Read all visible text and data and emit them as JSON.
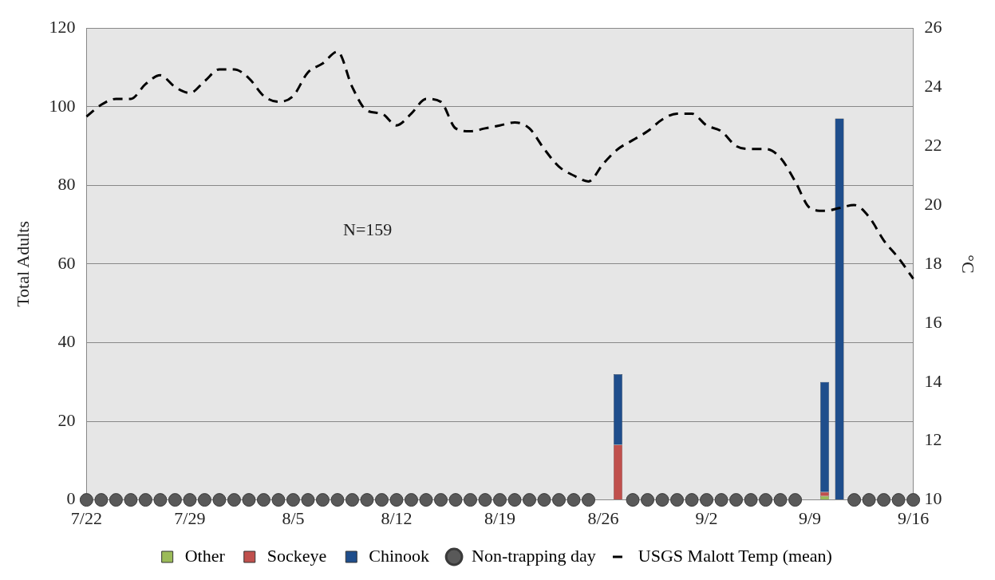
{
  "chart_data": {
    "type": "bar",
    "stacked": true,
    "categories": [
      "7/22",
      null,
      null,
      null,
      null,
      null,
      null,
      "7/29",
      null,
      null,
      null,
      null,
      null,
      null,
      "8/5",
      null,
      null,
      null,
      null,
      null,
      null,
      "8/12",
      null,
      null,
      null,
      null,
      null,
      null,
      "8/19",
      null,
      null,
      null,
      null,
      null,
      null,
      "8/26",
      null,
      null,
      null,
      null,
      null,
      null,
      "9/2",
      null,
      null,
      null,
      null,
      null,
      null,
      "9/9",
      null,
      null,
      null,
      null,
      null,
      null,
      "9/16"
    ],
    "ylabel": "Total Adults",
    "y2label": "°C",
    "ylim": [
      0,
      120
    ],
    "yticks": [
      0,
      20,
      40,
      60,
      80,
      100,
      120
    ],
    "y2lim": [
      10,
      26
    ],
    "y2ticks": [
      10,
      12,
      14,
      16,
      18,
      20,
      22,
      24,
      26
    ],
    "grid": "y",
    "legend": "bottom",
    "annotations": [
      "N=159"
    ],
    "series": [
      {
        "name": "Other",
        "color": "#9bbb59",
        "values": [
          null,
          null,
          null,
          null,
          null,
          null,
          null,
          null,
          null,
          null,
          null,
          null,
          null,
          null,
          null,
          null,
          null,
          null,
          null,
          null,
          null,
          null,
          null,
          null,
          null,
          null,
          null,
          null,
          null,
          null,
          null,
          null,
          null,
          null,
          null,
          0,
          0,
          null,
          null,
          null,
          null,
          null,
          null,
          null,
          null,
          null,
          null,
          null,
          null,
          0,
          1,
          0,
          null,
          null,
          null,
          null,
          null
        ]
      },
      {
        "name": "Sockeye",
        "color": "#c0504d",
        "values": [
          null,
          null,
          null,
          null,
          null,
          null,
          null,
          null,
          null,
          null,
          null,
          null,
          null,
          null,
          null,
          null,
          null,
          null,
          null,
          null,
          null,
          null,
          null,
          null,
          null,
          null,
          null,
          null,
          null,
          null,
          null,
          null,
          null,
          null,
          null,
          0,
          14,
          null,
          null,
          null,
          null,
          null,
          null,
          null,
          null,
          null,
          null,
          null,
          null,
          0,
          1,
          0,
          null,
          null,
          null,
          null,
          null
        ]
      },
      {
        "name": "Chinook",
        "color": "#1f4e8c",
        "values": [
          null,
          null,
          null,
          null,
          null,
          null,
          null,
          null,
          null,
          null,
          null,
          null,
          null,
          null,
          null,
          null,
          null,
          null,
          null,
          null,
          null,
          null,
          null,
          null,
          null,
          null,
          null,
          null,
          null,
          null,
          null,
          null,
          null,
          null,
          null,
          0,
          18,
          null,
          null,
          null,
          null,
          null,
          null,
          null,
          null,
          null,
          null,
          null,
          null,
          0,
          28,
          97,
          null,
          null,
          null,
          null,
          null
        ]
      },
      {
        "name": "Non-trapping day",
        "type": "scatter",
        "marker": "circle",
        "color": "#595959",
        "values": [
          0,
          0,
          0,
          0,
          0,
          0,
          0,
          0,
          0,
          0,
          0,
          0,
          0,
          0,
          0,
          0,
          0,
          0,
          0,
          0,
          0,
          0,
          0,
          0,
          0,
          0,
          0,
          0,
          0,
          0,
          0,
          0,
          0,
          0,
          0,
          null,
          null,
          0,
          0,
          0,
          0,
          0,
          0,
          0,
          0,
          0,
          0,
          0,
          0,
          null,
          null,
          null,
          0,
          0,
          0,
          0,
          0
        ]
      },
      {
        "name": "USGS Malott Temp (mean)",
        "type": "line",
        "axis": "y2",
        "marker": "none",
        "line_style": "dashed",
        "color": "#000000",
        "values": [
          23.0,
          23.4,
          23.6,
          23.6,
          24.1,
          24.4,
          24.0,
          23.8,
          24.2,
          24.6,
          24.6,
          24.3,
          23.7,
          23.5,
          23.7,
          24.5,
          24.8,
          25.2,
          24.0,
          23.2,
          23.1,
          22.7,
          23.1,
          23.6,
          23.5,
          22.6,
          22.5,
          22.6,
          22.7,
          22.8,
          22.6,
          21.9,
          21.3,
          21.0,
          20.8,
          21.4,
          21.9,
          22.2,
          22.5,
          22.9,
          23.1,
          23.1,
          22.7,
          22.5,
          22.0,
          21.9,
          21.9,
          21.6,
          20.8,
          19.9,
          19.8,
          19.9,
          20.0,
          19.6,
          18.8,
          18.2,
          17.5
        ]
      }
    ]
  }
}
